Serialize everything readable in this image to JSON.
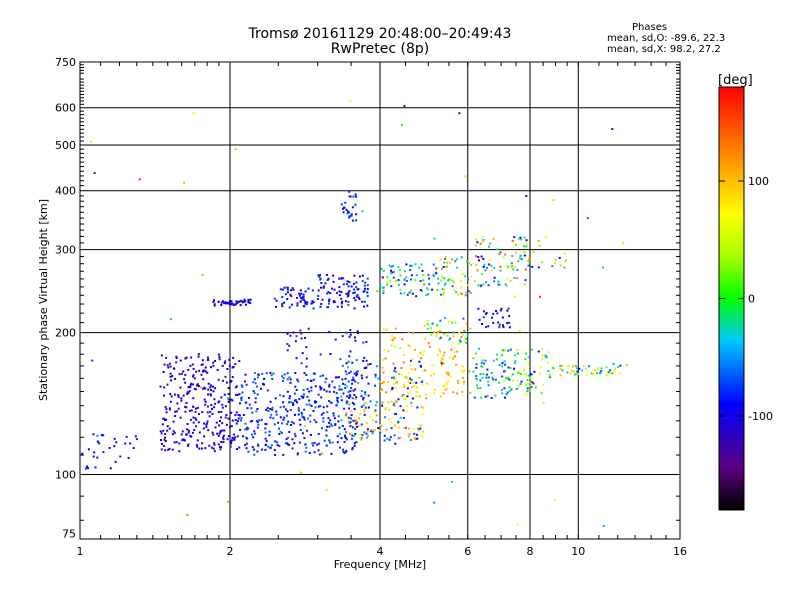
{
  "header": {
    "title": "Tromsø 20161129 20:48:00–20:49:43",
    "subtitle": "RwPretec (8p)",
    "stats_title": "Phases",
    "stats_o": "mean, sd,O: -89.6, 22.3",
    "stats_x": "mean, sd,X:  98.2, 27.2"
  },
  "colors": {
    "background": "#ffffff",
    "axis": "#000000"
  },
  "chart_data": {
    "type": "scatter",
    "title": "Tromsø 20161129 20:48:00–20:49:43",
    "subtitle": "RwPretec (8p)",
    "xlabel": "Frequency [MHz]",
    "ylabel": "Stationary phase Virtual Height [km]",
    "xscale": "log",
    "yscale": "log",
    "xlim": [
      1,
      16
    ],
    "ylim": [
      73,
      750
    ],
    "xticks": [
      1,
      2,
      4,
      6,
      8,
      10,
      16
    ],
    "xtick_labels": [
      "1",
      "2",
      "4",
      "6",
      "8",
      "10",
      "16"
    ],
    "xgrid": [
      2,
      4,
      6,
      8,
      10
    ],
    "yticks": [
      75,
      100,
      200,
      300,
      400,
      500,
      600,
      750
    ],
    "ytick_labels": [
      "75",
      "100",
      "200",
      "300",
      "400",
      "500",
      "600",
      "750"
    ],
    "ygrid": [
      100,
      200,
      300,
      400,
      500,
      600
    ],
    "grid": true,
    "colorbar": {
      "label": "[deg]",
      "range": [
        -180,
        180
      ],
      "ticks": [
        100,
        0,
        -100
      ],
      "tick_labels": [
        "100",
        "0",
        "-100"
      ],
      "colormap": "rainbow"
    },
    "clusters": [
      {
        "name": "o-low-1",
        "x": [
          1.0,
          1.32
        ],
        "y": [
          103,
          122
        ],
        "phase": [
          -105,
          -80
        ],
        "n": 30
      },
      {
        "name": "o-e-1",
        "x": [
          1.45,
          2.1
        ],
        "y": [
          112,
          180
        ],
        "phase": [
          -125,
          -85
        ],
        "n": 320
      },
      {
        "name": "o-e-2",
        "x": [
          2.1,
          3.6
        ],
        "y": [
          110,
          165
        ],
        "phase": [
          -110,
          -55
        ],
        "n": 330
      },
      {
        "name": "o-e-3",
        "x": [
          3.3,
          4.9
        ],
        "y": [
          115,
          175
        ],
        "phase": [
          -110,
          -35
        ],
        "n": 140
      },
      {
        "name": "o-stream",
        "x": [
          2.6,
          3.8
        ],
        "y": [
          130,
          205
        ],
        "phase": [
          -110,
          -70
        ],
        "n": 80
      },
      {
        "name": "x-mid-1",
        "x": [
          3.4,
          4.9
        ],
        "y": [
          118,
          145
        ],
        "phase": [
          60,
          125
        ],
        "n": 70
      },
      {
        "name": "x-mid-2",
        "x": [
          4.0,
          6.1
        ],
        "y": [
          145,
          205
        ],
        "phase": [
          50,
          135
        ],
        "n": 140
      },
      {
        "name": "x-mid-3",
        "x": [
          6.1,
          7.3
        ],
        "y": [
          145,
          185
        ],
        "phase": [
          -90,
          20
        ],
        "n": 60
      },
      {
        "name": "x-mid-4",
        "x": [
          7.0,
          8.8
        ],
        "y": [
          148,
          185
        ],
        "phase": [
          -95,
          90
        ],
        "n": 75
      },
      {
        "name": "x-mid-5",
        "x": [
          8.5,
          12.5
        ],
        "y": [
          162,
          172
        ],
        "phase": [
          -95,
          110
        ],
        "n": 50
      },
      {
        "name": "f-1",
        "x": [
          1.85,
          2.2
        ],
        "y": [
          228,
          235
        ],
        "phase": [
          -120,
          -90
        ],
        "n": 45
      },
      {
        "name": "f-2",
        "x": [
          2.45,
          2.95
        ],
        "y": [
          225,
          250
        ],
        "phase": [
          -115,
          -75
        ],
        "n": 55
      },
      {
        "name": "f-3",
        "x": [
          3.0,
          3.8
        ],
        "y": [
          225,
          265
        ],
        "phase": [
          -110,
          -70
        ],
        "n": 95
      },
      {
        "name": "f-4",
        "x": [
          3.9,
          5.4
        ],
        "y": [
          240,
          280
        ],
        "phase": [
          -120,
          30
        ],
        "n": 80
      },
      {
        "name": "f-5",
        "x": [
          5.2,
          6.1
        ],
        "y": [
          240,
          290
        ],
        "phase": [
          -60,
          130
        ],
        "n": 50
      },
      {
        "name": "f-6",
        "x": [
          6.2,
          8.0
        ],
        "y": [
          250,
          320
        ],
        "phase": [
          -110,
          150
        ],
        "n": 80
      },
      {
        "name": "f-7",
        "x": [
          7.5,
          9.5
        ],
        "y": [
          270,
          320
        ],
        "phase": [
          -140,
          120
        ],
        "n": 25
      },
      {
        "name": "f-high",
        "x": [
          3.35,
          3.6
        ],
        "y": [
          345,
          400
        ],
        "phase": [
          -110,
          -60
        ],
        "n": 25
      },
      {
        "name": "f-8",
        "x": [
          6.3,
          7.3
        ],
        "y": [
          205,
          225
        ],
        "phase": [
          -110,
          -70
        ],
        "n": 30
      },
      {
        "name": "f-9",
        "x": [
          4.9,
          6.0
        ],
        "y": [
          190,
          215
        ],
        "phase": [
          -100,
          110
        ],
        "n": 35
      },
      {
        "name": "scatter",
        "x": [
          1.0,
          13.0
        ],
        "y": [
          75,
          650
        ],
        "phase": [
          -140,
          160
        ],
        "n": 50
      }
    ]
  }
}
